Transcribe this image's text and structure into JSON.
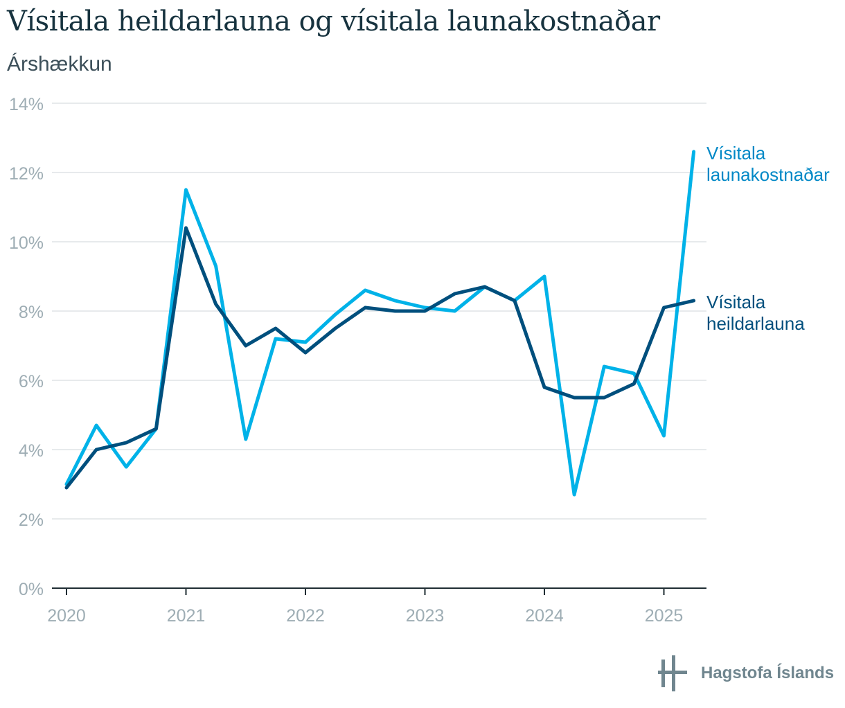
{
  "header": {
    "title": "Vísitala heildarlauna og vísitala launakostnaðar",
    "subtitle": "Árshækkun"
  },
  "chart_data": {
    "type": "line",
    "title": "Vísitala heildarlauna og vísitala launakostnaðar",
    "subtitle": "Árshækkun",
    "xlabel": "",
    "ylabel": "",
    "ylim": [
      0,
      14
    ],
    "y_ticks": [
      0,
      2,
      4,
      6,
      8,
      10,
      12,
      14
    ],
    "y_tick_labels": [
      "0%",
      "2%",
      "4%",
      "6%",
      "8%",
      "10%",
      "12%",
      "14%"
    ],
    "x_range": [
      2019.925,
      2025.375
    ],
    "x_ticks": [
      2020,
      2021,
      2022,
      2023,
      2024,
      2025
    ],
    "x_tick_labels": [
      "2020",
      "2021",
      "2022",
      "2023",
      "2024",
      "2025"
    ],
    "grid": true,
    "x": [
      2020.0,
      2020.25,
      2020.5,
      2020.75,
      2021.0,
      2021.25,
      2021.5,
      2021.75,
      2022.0,
      2022.25,
      2022.5,
      2022.75,
      2023.0,
      2023.25,
      2023.5,
      2023.75,
      2024.0,
      2024.25,
      2024.5,
      2024.75,
      2025.0,
      2025.25
    ],
    "series": [
      {
        "name": "Vísitala launakostnaðar",
        "label_lines": [
          "Vísitala",
          "launakostnaðar"
        ],
        "color": "#00b2e8",
        "label_color": "#0088c6",
        "values": [
          3.0,
          4.7,
          3.5,
          4.6,
          11.5,
          9.3,
          4.3,
          7.2,
          7.1,
          7.9,
          8.6,
          8.3,
          8.1,
          8.0,
          8.7,
          8.3,
          9.0,
          2.7,
          6.4,
          6.2,
          4.4,
          12.6
        ]
      },
      {
        "name": "Vísitala heildarlauna",
        "label_lines": [
          "Vísitala",
          "heildarlauna"
        ],
        "color": "#004f7d",
        "label_color": "#004f7d",
        "values": [
          2.9,
          4.0,
          4.2,
          4.6,
          10.4,
          8.2,
          7.0,
          7.5,
          6.8,
          7.5,
          8.1,
          8.0,
          8.0,
          8.5,
          8.7,
          8.3,
          5.8,
          5.5,
          5.5,
          5.9,
          8.1,
          8.3
        ]
      }
    ]
  },
  "logo": {
    "text": "Hagstofa Íslands",
    "icon": "hagstofa-logo-icon",
    "color": "#70868f"
  }
}
